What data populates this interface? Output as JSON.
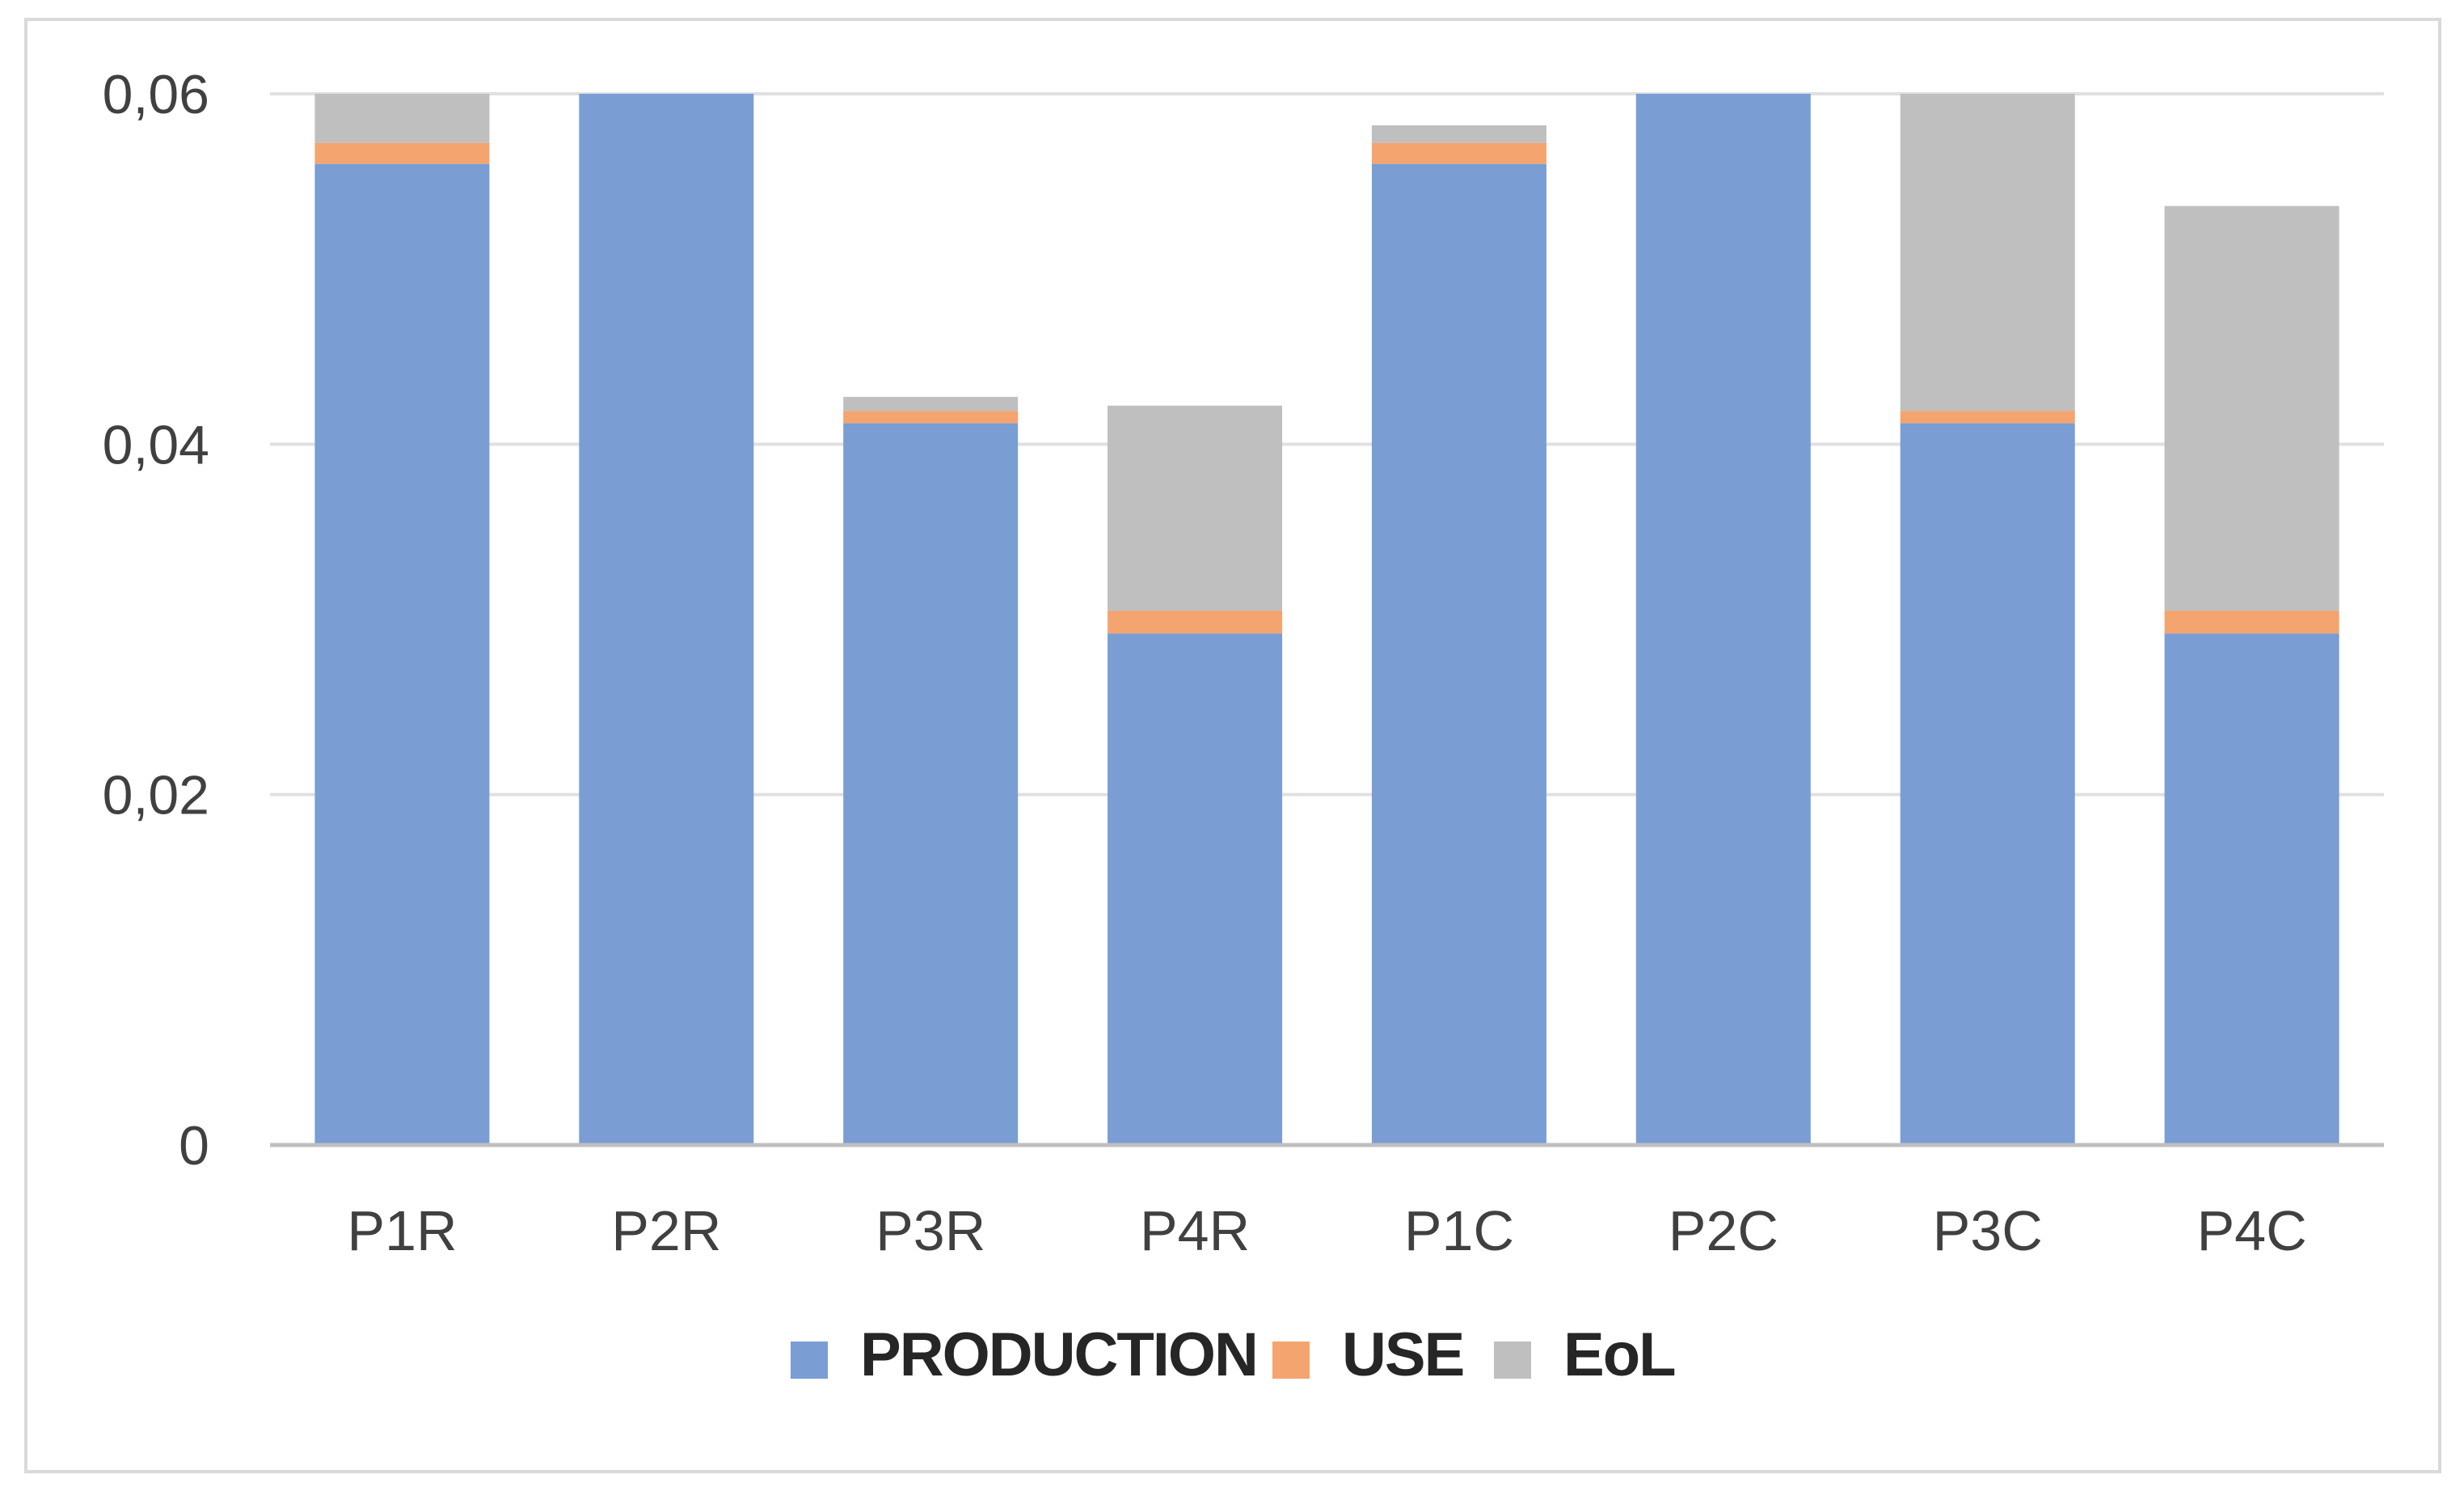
{
  "chart_data": {
    "type": "bar",
    "stacked": true,
    "title": "",
    "xlabel": "",
    "ylabel": "",
    "categories": [
      "P1R",
      "P2R",
      "P3R",
      "P4R",
      "P1C",
      "P2C",
      "P3C",
      "P4C"
    ],
    "series": [
      {
        "name": "PRODUCTION",
        "color": "#7a9dd4",
        "values": [
          0.056,
          0.06,
          0.0412,
          0.0292,
          0.056,
          0.06,
          0.0412,
          0.0292
        ]
      },
      {
        "name": "USE",
        "color": "#f4a46e",
        "values": [
          0.0012,
          0.0,
          0.0007,
          0.0013,
          0.0012,
          0.0,
          0.0007,
          0.0013
        ]
      },
      {
        "name": "EoL",
        "color": "#bfbfbf",
        "values": [
          0.0028,
          0.0,
          0.0008,
          0.0117,
          0.001,
          0.0,
          0.0181,
          0.0231
        ]
      }
    ],
    "ylim": [
      0,
      0.06
    ],
    "yticks": [
      0,
      0.02,
      0.04,
      0.06
    ],
    "ytick_labels": [
      "0",
      "0,02",
      "0,04",
      "0,06"
    ],
    "grid": true,
    "legend_position": "bottom"
  }
}
